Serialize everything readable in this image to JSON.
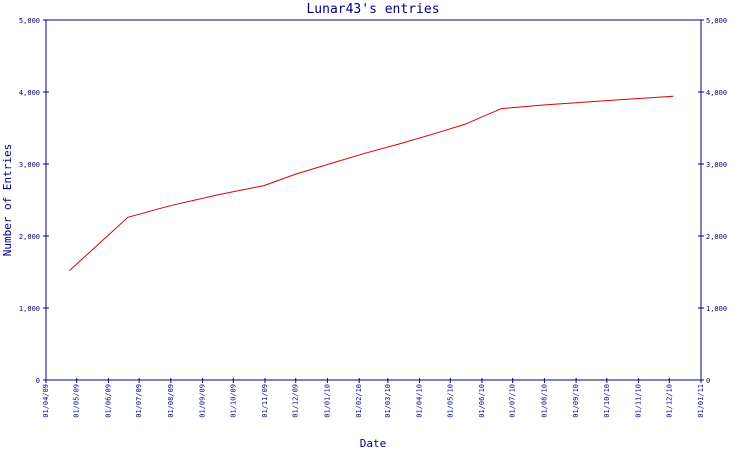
{
  "chart_data": {
    "type": "line",
    "title": "Lunar43's entries",
    "xlabel": "Date",
    "ylabel": "Number of Entries",
    "ylim": [
      0,
      5000
    ],
    "y_ticks": [
      0,
      1000,
      2000,
      3000,
      4000,
      5000
    ],
    "y_tick_labels": [
      "0",
      "1,000",
      "2,000",
      "3,000",
      "4,000",
      "5,000"
    ],
    "y_axis_right": true,
    "x_tick_labels": [
      "01/04/09",
      "01/05/09",
      "01/06/09",
      "01/07/09",
      "01/08/09",
      "01/09/09",
      "01/10/09",
      "01/11/09",
      "01/12/09",
      "01/01/10",
      "01/02/10",
      "01/03/10",
      "01/04/10",
      "01/05/10",
      "01/06/10",
      "01/07/10",
      "01/08/10",
      "01/09/10",
      "01/10/10",
      "01/11/10",
      "01/12/10",
      "01/01/11"
    ],
    "xlim": [
      "2009-04-01",
      "2011-01-01"
    ],
    "grid": false,
    "line_color": "#dd0000",
    "axis_color": "#000080",
    "series": [
      {
        "x": [
          "2009-04-24",
          "2009-06-20",
          "2009-07-31",
          "2009-09-15",
          "2009-10-31",
          "2009-12-01",
          "2010-01-07",
          "2010-02-07",
          "2010-03-15",
          "2010-04-15",
          "2010-05-15",
          "2010-06-20",
          "2010-07-31",
          "2010-09-01",
          "2010-10-01",
          "2010-11-01",
          "2010-12-05"
        ],
        "values": [
          1520,
          2260,
          2420,
          2570,
          2700,
          2860,
          3020,
          3150,
          3290,
          3420,
          3550,
          3770,
          3820,
          3850,
          3880,
          3910,
          3940
        ]
      }
    ]
  }
}
